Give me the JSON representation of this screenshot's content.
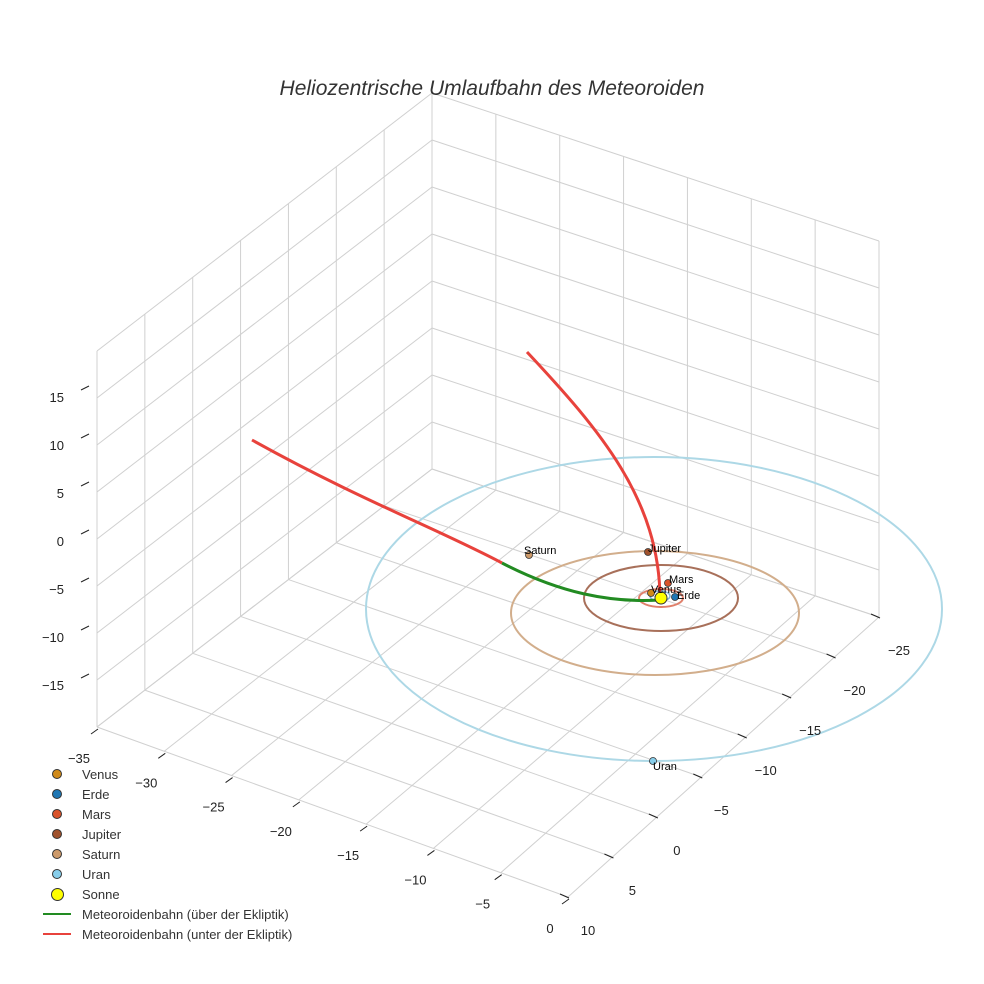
{
  "chart_data": {
    "type": "scatter3d",
    "title": "Heliozentrische Umlaufbahn des Meteoroiden",
    "axes": {
      "x": {
        "range": [
          -35,
          0
        ],
        "ticks": [
          -35,
          -30,
          -25,
          -20,
          -15,
          -10,
          -5,
          0
        ]
      },
      "y": {
        "range": [
          -25,
          10
        ],
        "ticks": [
          -25,
          -20,
          -15,
          -10,
          -5,
          0,
          5,
          10
        ]
      },
      "z": {
        "range": [
          -15,
          15
        ],
        "ticks": [
          15,
          10,
          5,
          0,
          -5,
          -10,
          -15
        ]
      }
    },
    "grid": true,
    "legend_position": "bottom-left",
    "planets": [
      {
        "name": "Venus",
        "label": "Venus",
        "color": "#d08a1a"
      },
      {
        "name": "Erde",
        "label": "Erde",
        "color": "#1f77b4"
      },
      {
        "name": "Mars",
        "label": "Mars",
        "color": "#d9532b"
      },
      {
        "name": "Jupiter",
        "label": "Jupiter",
        "color": "#a0522d"
      },
      {
        "name": "Saturn",
        "label": "Saturn",
        "color": "#cd9a6a"
      },
      {
        "name": "Uran",
        "label": "Uran",
        "color": "#87ceeb"
      }
    ],
    "sun": {
      "name": "Sonne",
      "color": "#ffff00"
    },
    "orbits": [
      {
        "planet": "Mars",
        "color": "#e0806b"
      },
      {
        "planet": "Jupiter",
        "color": "#a8705a"
      },
      {
        "planet": "Saturn",
        "color": "#d2ae8c"
      },
      {
        "planet": "Uran",
        "color": "#add8e6"
      }
    ],
    "series": [
      {
        "name": "Meteoroidenbahn (über der Ekliptik)",
        "color": "#228b22"
      },
      {
        "name": "Meteoroidenbahn (unter der Ekliptik)",
        "color": "#e8423c"
      }
    ]
  },
  "legend": [
    {
      "label": "Venus",
      "kind": "dot",
      "color": "#d08a1a"
    },
    {
      "label": "Erde",
      "kind": "dot",
      "color": "#1f77b4"
    },
    {
      "label": "Mars",
      "kind": "dot",
      "color": "#d9532b"
    },
    {
      "label": "Jupiter",
      "kind": "dot",
      "color": "#a0522d"
    },
    {
      "label": "Saturn",
      "kind": "dot",
      "color": "#cd9a6a"
    },
    {
      "label": "Uran",
      "kind": "dot",
      "color": "#87ceeb"
    },
    {
      "label": "Sonne",
      "kind": "bigdot",
      "color": "#ffff00"
    },
    {
      "label": "Meteoroidenbahn (über der Ekliptik)",
      "kind": "line",
      "color": "#228b22"
    },
    {
      "label": "Meteoroidenbahn (unter der Ekliptik)",
      "kind": "line",
      "color": "#e8423c"
    }
  ]
}
